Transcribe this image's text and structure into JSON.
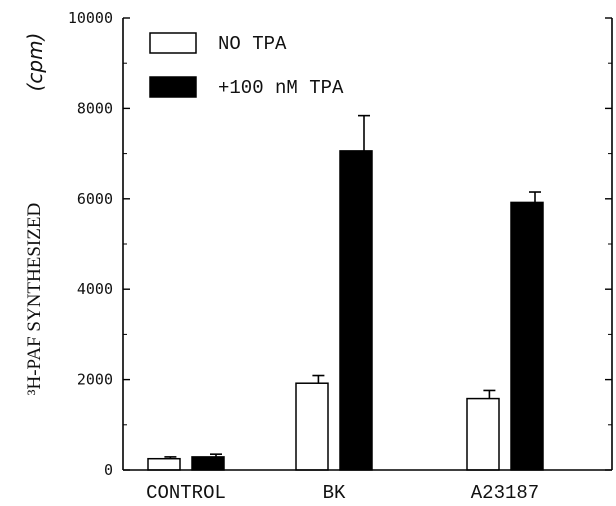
{
  "chart_data": {
    "type": "bar",
    "categories": [
      "CONTROL",
      "BK",
      "A23187"
    ],
    "series": [
      {
        "name": "NO TPA",
        "color": "#ffffff",
        "values": [
          250,
          1920,
          1580
        ],
        "errors": [
          40,
          170,
          180
        ]
      },
      {
        "name": "+100 nM TPA",
        "color": "#000000",
        "values": [
          290,
          7060,
          5920
        ],
        "errors": [
          60,
          780,
          230
        ]
      }
    ],
    "ylabel_main": "³H-PAF SYNTHESIZED",
    "ylabel_unit": "(cpm)",
    "ylim": [
      0,
      10000
    ],
    "yticks": [
      0,
      2000,
      4000,
      6000,
      8000,
      10000
    ],
    "legend_position": "top-left",
    "grid": false
  }
}
